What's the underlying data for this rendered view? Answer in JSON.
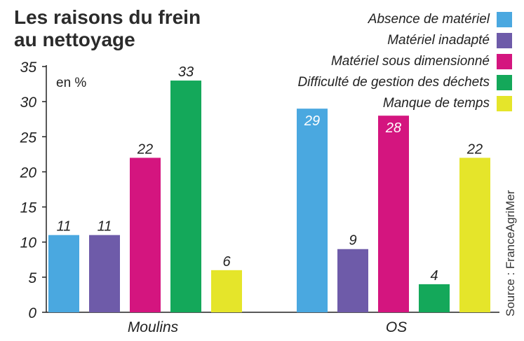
{
  "chart_data": {
    "type": "bar",
    "title": [
      "Les raisons du frein",
      "au nettoyage"
    ],
    "unit": "en %",
    "categories": [
      "Moulins",
      "OS"
    ],
    "ylim": [
      0,
      35
    ],
    "yticks": [
      0,
      5,
      10,
      15,
      20,
      25,
      30,
      35
    ],
    "grid": false,
    "legend_position": "top-right",
    "series": [
      {
        "name": "Absence de matériel",
        "color": "#4aa8e0",
        "values": [
          11,
          29
        ]
      },
      {
        "name": "Matériel inadapté",
        "color": "#6e5ba9",
        "values": [
          11,
          9
        ]
      },
      {
        "name": "Matériel sous dimensionné",
        "color": "#d4157f",
        "values": [
          22,
          28
        ]
      },
      {
        "name": "Difficulté de gestion des déchets",
        "color": "#14a85a",
        "values": [
          33,
          4
        ]
      },
      {
        "name": "Manque de temps",
        "color": "#e5e52a",
        "values": [
          6,
          22
        ]
      }
    ],
    "source": "Source : FranceAgriMer"
  }
}
